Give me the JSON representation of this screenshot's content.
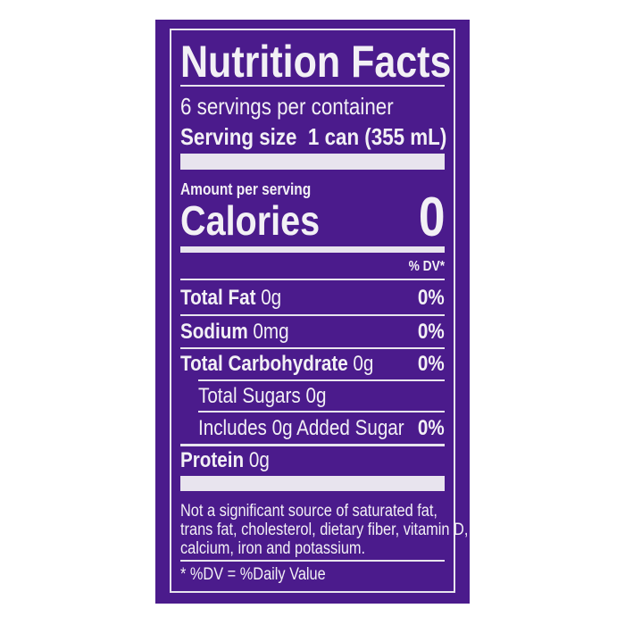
{
  "colors": {
    "background": "#4b1b8c",
    "text": "#f2f0f5"
  },
  "label": {
    "title": "Nutrition Facts",
    "servings": "6 servings per container",
    "serving_size_label": "Serving size",
    "serving_size_value": "1 can (355 mL)",
    "amount_per_serving": "Amount per serving",
    "calories_label": "Calories",
    "calories_value": "0",
    "dv_header": "% DV*",
    "nutrients": [
      {
        "name": "Total Fat",
        "amount": "0g",
        "dv": "0%"
      },
      {
        "name": "Sodium",
        "amount": "0mg",
        "dv": "0%"
      },
      {
        "name": "Total Carbohydrate",
        "amount": "0g",
        "dv": "0%"
      },
      {
        "name": "Total Sugars 0g",
        "amount": "",
        "dv": ""
      },
      {
        "name": "Includes 0g Added Sugar",
        "amount": "",
        "dv": "0%"
      },
      {
        "name": "Protein",
        "amount": "0g",
        "dv": ""
      }
    ],
    "footnote": [
      "Not a significant source of saturated fat,",
      "trans fat, cholesterol, dietary fiber, vitamin D,",
      "calcium, iron and potassium."
    ],
    "dv_note": "* %DV = %Daily Value"
  }
}
